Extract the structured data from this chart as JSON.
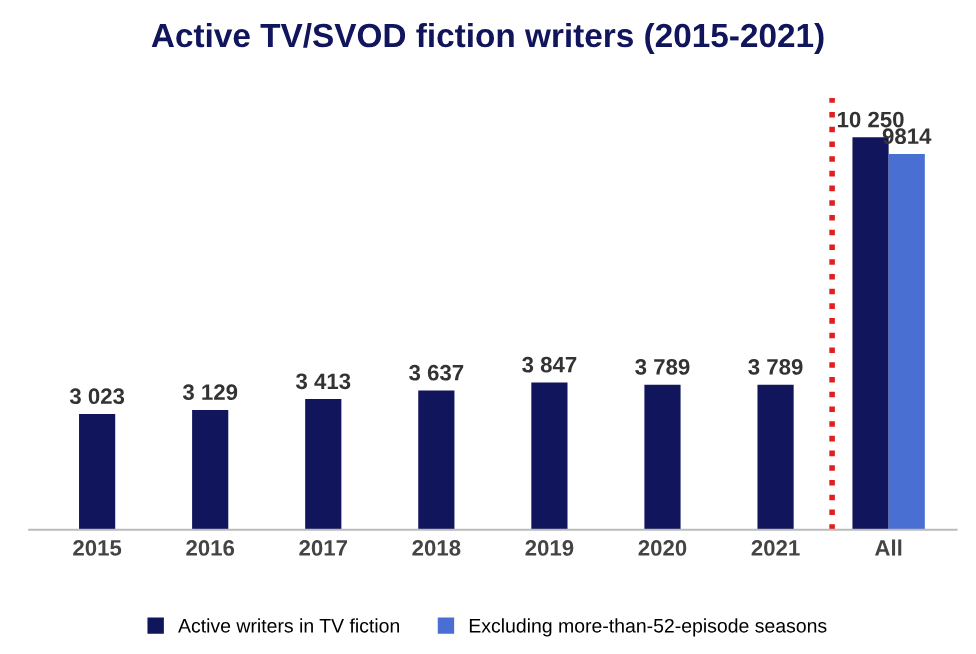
{
  "chart_data": {
    "type": "bar",
    "title": "Active TV/SVOD fiction writers (2015-2021)",
    "categories": [
      "2015",
      "2016",
      "2017",
      "2018",
      "2019",
      "2020",
      "2021",
      "All"
    ],
    "series": [
      {
        "name": "Active writers in TV fiction",
        "color": "#10155c",
        "values": [
          3023,
          3129,
          3413,
          3637,
          3847,
          3789,
          3789,
          10250
        ],
        "value_labels": [
          "3 023",
          "3 129",
          "3 413",
          "3 637",
          "3 847",
          "3 789",
          "3 789",
          "10 250"
        ]
      },
      {
        "name": "Excluding more-than-52-episode seasons",
        "color": "#4a6fd2",
        "values": [
          null,
          null,
          null,
          null,
          null,
          null,
          null,
          9814
        ],
        "value_labels": [
          null,
          null,
          null,
          null,
          null,
          null,
          null,
          "9814"
        ]
      }
    ],
    "ref_lines": [
      {
        "axis": "x",
        "value": "All",
        "color": "#e02020",
        "line_style": "dotted"
      }
    ],
    "legend": "bottom",
    "grid": false
  }
}
